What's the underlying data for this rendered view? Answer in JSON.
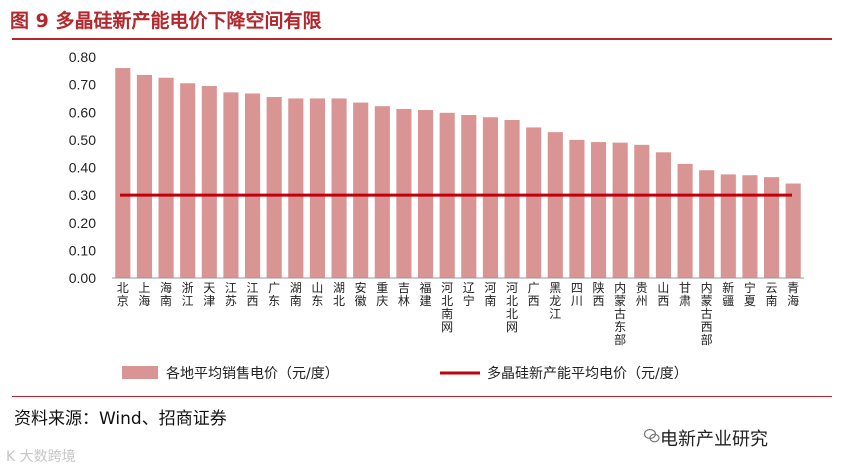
{
  "figure": {
    "title": "图 9  多晶硅新产能电价下降空间有限",
    "source": "资料来源：Wind、招商证券",
    "brand": "电新产业研究",
    "watermark": "K 大数跨境"
  },
  "colors": {
    "bar": "#d99594",
    "line": "#c0000b",
    "title": "#b4282d"
  },
  "chart_data": {
    "type": "bar",
    "title": "",
    "xlabel": "",
    "ylabel": "",
    "ylim": [
      0,
      0.8
    ],
    "yticks": [
      "0.00",
      "0.10",
      "0.20",
      "0.30",
      "0.40",
      "0.50",
      "0.60",
      "0.70",
      "0.80"
    ],
    "categories": [
      "北京",
      "上海",
      "海南",
      "浙江",
      "天津",
      "江苏",
      "江西",
      "广东",
      "湖南",
      "山东",
      "湖北",
      "安徽",
      "重庆",
      "吉林",
      "福建",
      "河北南网",
      "辽宁",
      "河南",
      "河北北网",
      "广西",
      "黑龙江",
      "四川",
      "陕西",
      "内蒙古东部",
      "贵州",
      "山西",
      "甘肃",
      "内蒙古西部",
      "新疆",
      "宁夏",
      "云南",
      "青海"
    ],
    "series": [
      {
        "name": "各地平均销售电价（元/度）",
        "type": "bar",
        "values": [
          0.76,
          0.735,
          0.725,
          0.705,
          0.695,
          0.672,
          0.668,
          0.655,
          0.65,
          0.65,
          0.65,
          0.635,
          0.622,
          0.612,
          0.608,
          0.598,
          0.59,
          0.582,
          0.572,
          0.545,
          0.528,
          0.5,
          0.492,
          0.49,
          0.482,
          0.455,
          0.413,
          0.39,
          0.375,
          0.372,
          0.365,
          0.342
        ]
      },
      {
        "name": "多晶硅新产能平均电价（元/度）",
        "type": "line",
        "value": 0.3
      }
    ],
    "legend": [
      "各地平均销售电价（元/度）",
      "多晶硅新产能平均电价（元/度）"
    ],
    "legend_position": "bottom",
    "grid": false
  }
}
